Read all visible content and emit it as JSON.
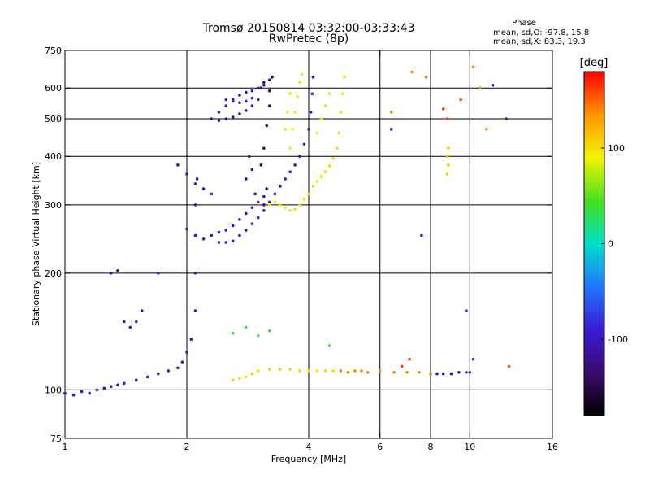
{
  "chart_data": {
    "type": "scatter",
    "title": "Tromsø 20150814 03:32:00-03:33:43",
    "subtitle": "RwPretec (8p)",
    "xlabel": "Frequency [MHz]",
    "ylabel": "Stationary phase Virtual Height [km]",
    "x_scale": "log",
    "y_scale": "log",
    "xlim": [
      1,
      16
    ],
    "ylim": [
      75,
      750
    ],
    "x_ticks": [
      1,
      2,
      4,
      6,
      8,
      10,
      16
    ],
    "y_ticks": [
      75,
      100,
      200,
      300,
      400,
      500,
      600,
      750
    ],
    "x_grid": [
      2,
      4,
      6,
      8,
      10
    ],
    "y_grid": [
      100,
      200,
      300,
      400,
      500,
      600
    ],
    "stats": {
      "heading": "Phase",
      "line_o": "mean, sd,O: -97.8, 15.8",
      "line_x": "mean, sd,X:  83.3, 19.3"
    },
    "colorbar": {
      "label": "[deg]",
      "range": [
        -180,
        180
      ],
      "ticks": [
        100,
        0,
        -100
      ]
    },
    "traces": [
      {
        "phase": -100,
        "points": [
          [
            1.0,
            98
          ],
          [
            1.05,
            97
          ],
          [
            1.1,
            99
          ],
          [
            1.15,
            98
          ],
          [
            1.2,
            100
          ],
          [
            1.25,
            101
          ],
          [
            1.3,
            102
          ],
          [
            1.35,
            103
          ],
          [
            1.4,
            104
          ],
          [
            1.5,
            106
          ],
          [
            1.6,
            108
          ],
          [
            1.7,
            110
          ],
          [
            1.8,
            112
          ],
          [
            1.9,
            114
          ],
          [
            1.95,
            118
          ],
          [
            2.0,
            125
          ],
          [
            2.05,
            135
          ],
          [
            2.1,
            160
          ],
          [
            2.1,
            200
          ],
          [
            2.1,
            250
          ],
          [
            2.1,
            300
          ],
          [
            2.12,
            350
          ]
        ]
      },
      {
        "phase": -100,
        "points": [
          [
            1.3,
            200
          ],
          [
            1.35,
            203
          ],
          [
            1.4,
            150
          ],
          [
            1.45,
            145
          ],
          [
            1.5,
            150
          ],
          [
            1.55,
            160
          ],
          [
            1.7,
            200
          ]
        ]
      },
      {
        "phase": -100,
        "points": [
          [
            2.0,
            260
          ],
          [
            2.1,
            250
          ],
          [
            2.2,
            245
          ],
          [
            2.3,
            250
          ],
          [
            2.4,
            255
          ],
          [
            2.5,
            258
          ],
          [
            2.6,
            265
          ],
          [
            2.7,
            275
          ],
          [
            2.8,
            285
          ],
          [
            2.9,
            295
          ],
          [
            3.0,
            305
          ],
          [
            3.1,
            315
          ]
        ]
      },
      {
        "phase": -100,
        "points": [
          [
            2.4,
            240
          ],
          [
            2.5,
            240
          ],
          [
            2.6,
            242
          ],
          [
            2.7,
            250
          ],
          [
            2.8,
            258
          ],
          [
            2.9,
            268
          ],
          [
            3.0,
            278
          ],
          [
            3.1,
            290
          ],
          [
            3.2,
            305
          ],
          [
            3.3,
            320
          ],
          [
            3.4,
            335
          ],
          [
            3.5,
            350
          ],
          [
            3.6,
            365
          ],
          [
            3.7,
            380
          ],
          [
            3.8,
            400
          ],
          [
            3.9,
            430
          ],
          [
            4.0,
            470
          ],
          [
            4.05,
            520
          ],
          [
            4.08,
            580
          ],
          [
            4.1,
            640
          ]
        ]
      },
      {
        "phase": -100,
        "points": [
          [
            1.9,
            380
          ],
          [
            2.0,
            360
          ],
          [
            2.1,
            340
          ],
          [
            2.2,
            330
          ],
          [
            2.3,
            320
          ]
        ]
      },
      {
        "phase": -110,
        "points": [
          [
            2.4,
            520
          ],
          [
            2.5,
            540
          ],
          [
            2.6,
            560
          ],
          [
            2.7,
            575
          ],
          [
            2.8,
            585
          ],
          [
            2.9,
            590
          ],
          [
            3.0,
            600
          ],
          [
            3.1,
            610
          ],
          [
            3.2,
            630
          ]
        ]
      },
      {
        "phase": -110,
        "points": [
          [
            2.3,
            500
          ],
          [
            2.4,
            495
          ],
          [
            2.5,
            500
          ],
          [
            2.6,
            505
          ],
          [
            2.7,
            515
          ],
          [
            2.8,
            525
          ],
          [
            2.9,
            540
          ]
        ]
      },
      {
        "phase": -90,
        "points": [
          [
            2.5,
            560
          ],
          [
            2.6,
            555
          ],
          [
            2.7,
            550
          ],
          [
            2.8,
            555
          ],
          [
            2.9,
            565
          ]
        ]
      },
      {
        "phase": -130,
        "points": [
          [
            3.05,
            380
          ],
          [
            3.1,
            420
          ],
          [
            3.15,
            480
          ],
          [
            3.2,
            540
          ],
          [
            3.2,
            590
          ],
          [
            3.25,
            640
          ],
          [
            3.15,
            330
          ],
          [
            3.1,
            300
          ]
        ]
      },
      {
        "phase": -130,
        "points": [
          [
            2.8,
            350
          ],
          [
            2.85,
            400
          ],
          [
            2.9,
            370
          ],
          [
            2.95,
            320
          ],
          [
            3.0,
            560
          ],
          [
            3.05,
            600
          ],
          [
            3.1,
            620
          ]
        ]
      },
      {
        "phase": 100,
        "points": [
          [
            3.2,
            300
          ],
          [
            3.3,
            305
          ],
          [
            3.4,
            300
          ],
          [
            3.5,
            295
          ],
          [
            3.6,
            290
          ],
          [
            3.7,
            292
          ],
          [
            3.8,
            300
          ],
          [
            3.9,
            310
          ],
          [
            4.0,
            320
          ],
          [
            4.1,
            335
          ],
          [
            4.2,
            345
          ],
          [
            4.3,
            355
          ],
          [
            4.4,
            365
          ],
          [
            4.5,
            378
          ],
          [
            4.6,
            395
          ],
          [
            4.7,
            420
          ],
          [
            4.75,
            460
          ],
          [
            4.8,
            520
          ],
          [
            4.85,
            580
          ],
          [
            4.9,
            640
          ]
        ]
      },
      {
        "phase": 95,
        "points": [
          [
            3.6,
            420
          ],
          [
            3.65,
            470
          ],
          [
            3.7,
            520
          ],
          [
            3.75,
            570
          ],
          [
            3.8,
            620
          ],
          [
            3.85,
            650
          ],
          [
            3.5,
            470
          ],
          [
            3.55,
            520
          ],
          [
            3.6,
            580
          ]
        ]
      },
      {
        "phase": 100,
        "points": [
          [
            4.2,
            460
          ],
          [
            4.3,
            500
          ],
          [
            4.4,
            540
          ],
          [
            4.5,
            580
          ]
        ]
      },
      {
        "phase": 105,
        "points": [
          [
            2.6,
            106
          ],
          [
            2.7,
            107
          ],
          [
            2.8,
            108
          ],
          [
            2.9,
            110
          ],
          [
            3.0,
            112
          ],
          [
            3.2,
            113
          ],
          [
            3.4,
            113
          ],
          [
            3.6,
            113
          ],
          [
            3.8,
            112
          ],
          [
            4.0,
            112
          ],
          [
            4.2,
            112
          ],
          [
            4.4,
            112
          ],
          [
            4.6,
            112
          ]
        ]
      },
      {
        "phase": 140,
        "points": [
          [
            4.8,
            112
          ],
          [
            5.0,
            111
          ],
          [
            5.2,
            112
          ],
          [
            5.4,
            112
          ],
          [
            5.6,
            111
          ],
          [
            6.0,
            112
          ],
          [
            6.5,
            111
          ],
          [
            7.0,
            111
          ],
          [
            7.5,
            111
          ],
          [
            8.0,
            110
          ]
        ]
      },
      {
        "phase": -100,
        "points": [
          [
            8.3,
            110
          ],
          [
            8.6,
            110
          ],
          [
            9.0,
            110
          ],
          [
            9.4,
            111
          ],
          [
            9.8,
            111
          ],
          [
            10.0,
            111
          ]
        ]
      },
      {
        "phase": 110,
        "points": [
          [
            8.8,
            360
          ],
          [
            8.85,
            380
          ],
          [
            8.8,
            400
          ],
          [
            8.85,
            420
          ]
        ]
      },
      {
        "phase": 30,
        "points": [
          [
            2.6,
            140
          ],
          [
            2.8,
            145
          ],
          [
            3.0,
            138
          ],
          [
            3.2,
            142
          ],
          [
            4.5,
            130
          ]
        ]
      },
      {
        "phase": 140,
        "points": [
          [
            6.4,
            520
          ],
          [
            7.2,
            660
          ],
          [
            7.8,
            640
          ],
          [
            10.2,
            680
          ],
          [
            10.6,
            600
          ],
          [
            11.0,
            470
          ]
        ]
      },
      {
        "phase": -100,
        "points": [
          [
            6.4,
            470
          ],
          [
            7.6,
            250
          ],
          [
            9.8,
            160
          ],
          [
            10.2,
            120
          ],
          [
            12.3,
            500
          ],
          [
            11.4,
            610
          ]
        ]
      },
      {
        "phase": 160,
        "points": [
          [
            8.6,
            530
          ],
          [
            8.8,
            500
          ],
          [
            9.5,
            560
          ],
          [
            12.5,
            115
          ],
          [
            6.8,
            115
          ],
          [
            7.1,
            120
          ]
        ]
      }
    ]
  }
}
